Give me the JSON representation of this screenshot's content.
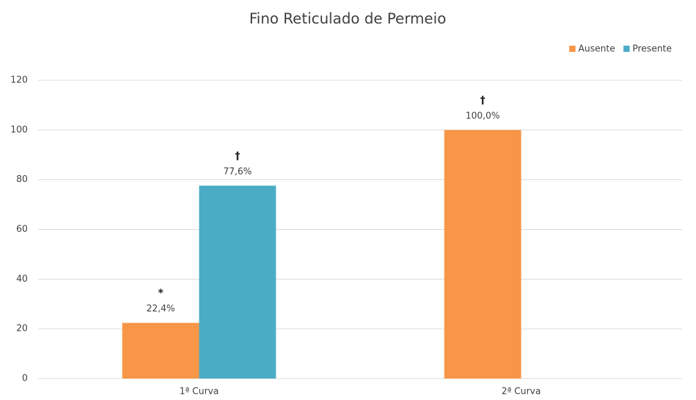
{
  "chart_data": {
    "type": "bar",
    "title": "Fino Reticulado de Permeio",
    "categories": [
      "1ª Curva",
      "2ª Curva"
    ],
    "series": [
      {
        "name": "Ausente",
        "color": "#f79646",
        "values": [
          22.4,
          100
        ],
        "value_labels": [
          "22,4%",
          "100,0%"
        ],
        "annotations": [
          "*",
          "†"
        ]
      },
      {
        "name": "Presente",
        "color": "#4bacc6",
        "values": [
          77.6,
          null
        ],
        "value_labels": [
          "77,6%",
          null
        ],
        "annotations": [
          "†",
          null
        ]
      }
    ],
    "ylim": [
      0,
      120
    ],
    "yticks": [
      0,
      20,
      40,
      60,
      80,
      100,
      120
    ],
    "grid": true,
    "legend": "top-right"
  }
}
